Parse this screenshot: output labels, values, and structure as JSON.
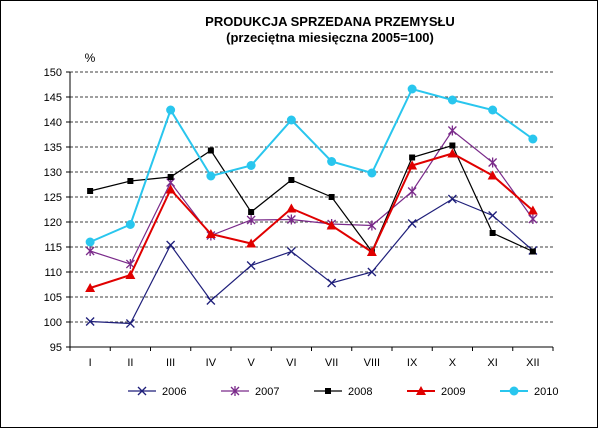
{
  "chart_data": {
    "type": "line",
    "title": "PRODUKCJA SPRZEDANA PRZEMYSŁU",
    "subtitle": "(przeciętna miesięczna 2005=100)",
    "ylabel": "%",
    "xlabel": "",
    "ylim": [
      95,
      150
    ],
    "yticks": [
      95,
      100,
      105,
      110,
      115,
      120,
      125,
      130,
      135,
      140,
      145,
      150
    ],
    "categories": [
      "I",
      "II",
      "III",
      "IV",
      "V",
      "VI",
      "VII",
      "VIII",
      "IX",
      "X",
      "XI",
      "XII"
    ],
    "grid": true,
    "legend": "bottom",
    "series": [
      {
        "name": "2006",
        "color": "#1f1f7a",
        "marker": "x",
        "values": [
          100.1,
          99.7,
          115.4,
          104.3,
          111.3,
          114.1,
          107.8,
          110.0,
          119.7,
          124.6,
          121.3,
          114.3
        ]
      },
      {
        "name": "2007",
        "color": "#7a2a8a",
        "marker": "asterisk",
        "values": [
          114.2,
          111.6,
          127.9,
          117.3,
          120.4,
          120.5,
          119.6,
          119.3,
          126.1,
          138.3,
          131.9,
          120.6
        ]
      },
      {
        "name": "2008",
        "color": "#000000",
        "marker": "square",
        "values": [
          126.2,
          128.2,
          129.0,
          134.3,
          122.0,
          128.4,
          125.0,
          114.1,
          132.9,
          135.3,
          117.8,
          114.1
        ]
      },
      {
        "name": "2009",
        "color": "#e00000",
        "marker": "triangle",
        "values": [
          106.8,
          109.4,
          126.5,
          117.6,
          115.7,
          122.7,
          119.3,
          114.0,
          131.3,
          133.7,
          129.3,
          122.3
        ]
      },
      {
        "name": "2010",
        "color": "#29c6ee",
        "marker": "circle",
        "values": [
          116.0,
          119.5,
          142.4,
          129.2,
          131.3,
          140.4,
          132.1,
          129.8,
          146.6,
          144.4,
          142.4,
          136.6
        ]
      }
    ]
  }
}
